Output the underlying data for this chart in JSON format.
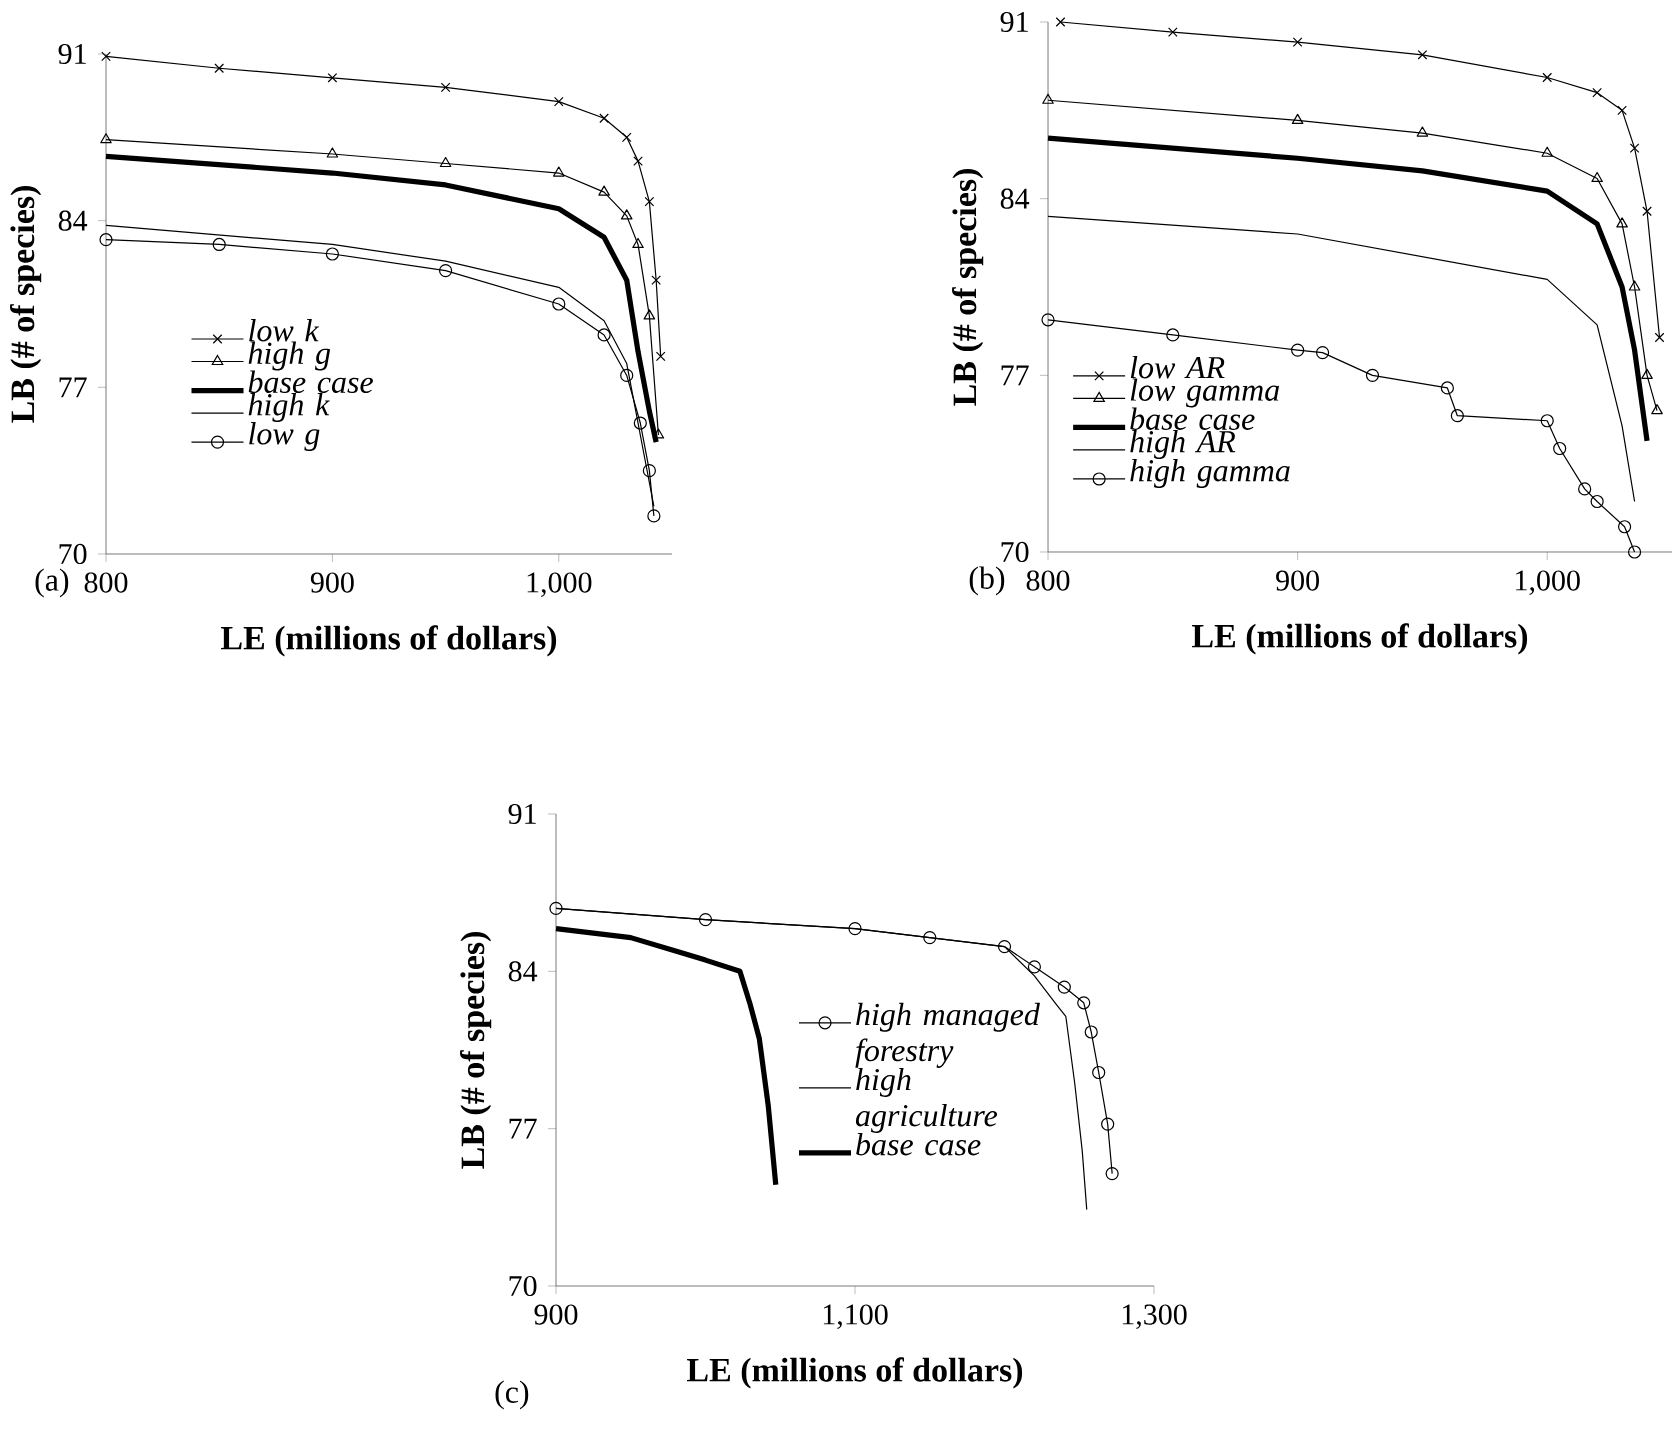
{
  "chart_data": [
    {
      "type": "line",
      "title": "(a)",
      "xlabel": "LE (millions of dollars)",
      "ylabel": "LB (# of species)",
      "xlim": [
        800,
        1050
      ],
      "xticks": [
        800,
        900,
        {
          "value": 1000,
          "label": "1,000"
        }
      ],
      "ylim": [
        70,
        91
      ],
      "yticks": [
        70,
        77,
        84,
        91
      ],
      "legend": "bottom left",
      "series": [
        {
          "name": "low k",
          "color": "#000000",
          "marker": "cross",
          "x": [
            800,
            850,
            900,
            950,
            1000,
            1020,
            1030,
            1035,
            1040,
            1043,
            1045
          ],
          "values": [
            90.9,
            90.4,
            90.0,
            89.6,
            89.0,
            88.3,
            87.5,
            86.5,
            84.8,
            81.5,
            78.3
          ]
        },
        {
          "name": "high g",
          "color": "#000000",
          "marker": "triangle",
          "x": [
            800,
            900,
            950,
            1000,
            1020,
            1030,
            1035,
            1040,
            1044
          ],
          "values": [
            87.4,
            86.8,
            86.4,
            86.0,
            85.2,
            84.2,
            83.0,
            80.0,
            75.0
          ]
        },
        {
          "name": "base case",
          "color": "#000000",
          "marker": "none",
          "x": [
            800,
            900,
            950,
            1000,
            1020,
            1030,
            1035,
            1040,
            1043
          ],
          "values": [
            86.7,
            86.0,
            85.5,
            84.5,
            83.3,
            81.5,
            78.5,
            76.0,
            74.7
          ]
        },
        {
          "name": "high k",
          "color": "#000000",
          "marker": "none",
          "x": [
            800,
            900,
            950,
            1000,
            1020,
            1030,
            1038,
            1042
          ],
          "values": [
            83.8,
            83.0,
            82.3,
            81.2,
            79.8,
            78.0,
            74.0,
            72.0
          ]
        },
        {
          "name": "low g",
          "color": "#000000",
          "marker": "circle",
          "x": [
            800,
            850,
            900,
            950,
            1000,
            1020,
            1030,
            1036,
            1040,
            1042
          ],
          "values": [
            83.2,
            83.0,
            82.6,
            81.9,
            80.5,
            79.2,
            77.5,
            75.5,
            73.5,
            71.6
          ]
        }
      ]
    },
    {
      "type": "line",
      "title": "(b)",
      "xlabel": "LE (millions of dollars)",
      "ylabel": "LB (# of species)",
      "xlim": [
        800,
        1050
      ],
      "xticks": [
        800,
        900,
        {
          "value": 1000,
          "label": "1,000"
        }
      ],
      "ylim": [
        70,
        91
      ],
      "yticks": [
        70,
        77,
        84,
        91
      ],
      "legend": "bottom left",
      "series": [
        {
          "name": "low AR",
          "color": "#000000",
          "marker": "cross",
          "x": [
            805,
            850,
            900,
            950,
            1000,
            1020,
            1030,
            1035,
            1040,
            1045
          ],
          "values": [
            91.0,
            90.6,
            90.2,
            89.7,
            88.8,
            88.2,
            87.5,
            86.0,
            83.5,
            78.5
          ]
        },
        {
          "name": "low gamma",
          "color": "#000000",
          "marker": "triangle",
          "x": [
            800,
            900,
            950,
            1000,
            1020,
            1030,
            1035,
            1040,
            1044
          ],
          "values": [
            87.9,
            87.1,
            86.6,
            85.8,
            84.8,
            83.0,
            80.5,
            77.0,
            75.6
          ]
        },
        {
          "name": "base case",
          "color": "#000000",
          "marker": "none",
          "x": [
            800,
            900,
            950,
            1000,
            1020,
            1030,
            1035,
            1040
          ],
          "values": [
            86.4,
            85.6,
            85.1,
            84.3,
            83.0,
            80.5,
            78.0,
            74.4
          ]
        },
        {
          "name": "high AR",
          "color": "#000000",
          "marker": "none",
          "x": [
            800,
            900,
            950,
            1000,
            1020,
            1030,
            1035
          ],
          "values": [
            83.3,
            82.6,
            81.7,
            80.8,
            79.0,
            75.0,
            72.0
          ]
        },
        {
          "name": "high gamma",
          "color": "#000000",
          "marker": "circle",
          "x": [
            800,
            850,
            900,
            910,
            930,
            960,
            964,
            1000,
            1005,
            1015,
            1020,
            1031,
            1035
          ],
          "values": [
            79.2,
            78.6,
            78.0,
            77.9,
            77.0,
            76.5,
            75.4,
            75.2,
            74.1,
            72.5,
            72.0,
            71.0,
            70.0
          ]
        }
      ]
    },
    {
      "type": "line",
      "title": "(c)",
      "xlabel": "LE (millions of dollars)",
      "ylabel": "LB (# of species)",
      "xlim": [
        900,
        1300
      ],
      "xticks": [
        900,
        {
          "value": 1100,
          "label": "1,100"
        },
        {
          "value": 1300,
          "label": "1,300"
        }
      ],
      "ylim": [
        70,
        91
      ],
      "yticks": [
        70,
        77,
        84,
        91
      ],
      "legend": "right",
      "series": [
        {
          "name": "high managed forestry",
          "color": "#000000",
          "marker": "circle",
          "x": [
            900,
            1000,
            1100,
            1150,
            1200,
            1220,
            1240,
            1253,
            1258,
            1263,
            1269,
            1272
          ],
          "values": [
            86.8,
            86.3,
            85.9,
            85.5,
            85.1,
            84.2,
            83.3,
            82.6,
            81.3,
            79.5,
            77.2,
            75.0
          ]
        },
        {
          "name": "high agriculture",
          "color": "#000000",
          "marker": "none",
          "x": [
            900,
            1000,
            1100,
            1150,
            1200,
            1220,
            1235,
            1241,
            1247,
            1252,
            1255
          ],
          "values": [
            86.8,
            86.3,
            85.9,
            85.5,
            85.1,
            83.8,
            82.5,
            82.0,
            79.0,
            76.0,
            73.4
          ]
        },
        {
          "name": "base case",
          "color": "#000000",
          "marker": "none",
          "x": [
            900,
            950,
            980,
            1000,
            1023,
            1030,
            1036,
            1042,
            1047
          ],
          "values": [
            85.9,
            85.5,
            84.9,
            84.5,
            84.0,
            82.5,
            81.0,
            78.0,
            74.5
          ]
        }
      ]
    }
  ]
}
